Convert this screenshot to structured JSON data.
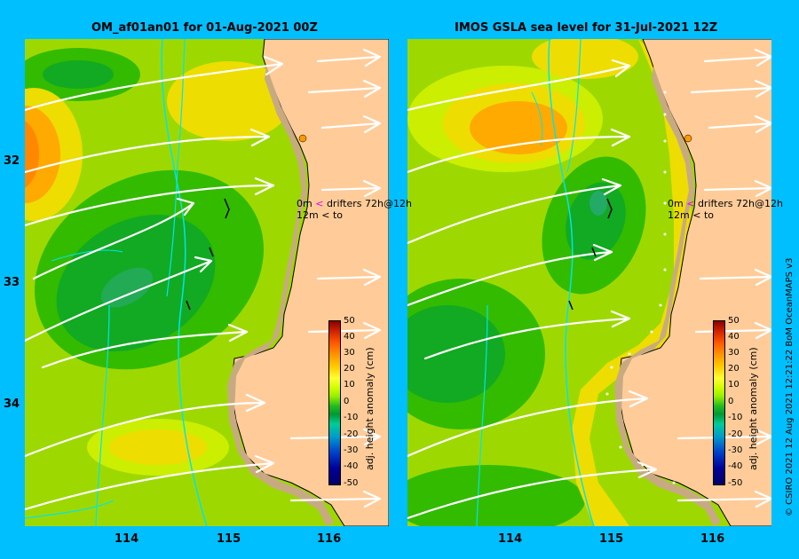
{
  "left_panel": {
    "title": "OM_af01an01 for 01-Aug-2021 00Z",
    "legend_line1_depth": "0m",
    "legend_line1_text": "drifters 72h@12h",
    "legend_line2_depth": "12m",
    "legend_line2_text": "to"
  },
  "right_panel": {
    "title": "IMOS GSLA sea level  for 31-Jul-2021 12Z",
    "legend_line1_depth": "0m",
    "legend_line1_text": "drifters 72h@12h",
    "legend_line2_depth": "12m",
    "legend_line2_text": "to"
  },
  "y_ticks": [
    "32",
    "33",
    "34"
  ],
  "x_ticks": [
    "114",
    "115",
    "116"
  ],
  "colorbar": {
    "label": "adj. height anomaly (cm)",
    "ticks": [
      "50",
      "40",
      "30",
      "20",
      "10",
      "0",
      "-10",
      "-20",
      "-30",
      "-40",
      "-50"
    ]
  },
  "credit": "© CSIRO 2021  12 Aug 2021 12:21:22 BoM OceanMAPS v3",
  "colors": {
    "background": "#00bfff",
    "land": "#ffcc99",
    "coast_shelf": "#c8aa82",
    "isobath": "#00e5ee",
    "arrows": "#ffffff"
  }
}
